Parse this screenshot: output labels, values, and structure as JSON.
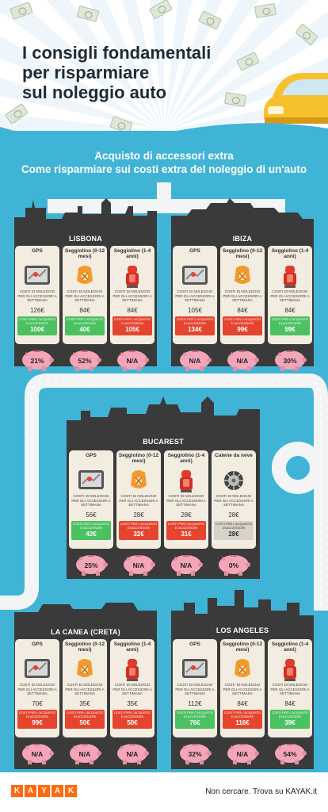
{
  "header": {
    "title_line1": "I consigli fondamentali",
    "title_line2": "per risparmiare",
    "title_line3": "sul noleggio auto"
  },
  "subtitle": {
    "line1": "Acquisto di accessori extra",
    "line2": "Come risparmiare sui costi extra del noleggio di un'auto"
  },
  "labels": {
    "rent_desc": "COSTI DI NOLEGGIO PER GLI ACCESSORI A SETTIMANA",
    "buy_desc": "COSTI PER L'ACQUISTO DI ACCESSORI"
  },
  "cities": [
    {
      "name": "LISBONA",
      "items": [
        {
          "label": "GPS",
          "icon": "gps-icon",
          "rent": "126€",
          "buy": "100€",
          "buy_color": "green",
          "saving": "21%"
        },
        {
          "label": "Seggiolino (0-12 mesi)",
          "icon": "baby-seat-icon",
          "rent": "84€",
          "buy": "40€",
          "buy_color": "green",
          "saving": "52%"
        },
        {
          "label": "Seggiolino (1-4 anni)",
          "icon": "child-seat-icon",
          "rent": "84€",
          "buy": "105€",
          "buy_color": "red",
          "saving": "N/A"
        }
      ]
    },
    {
      "name": "IBIZA",
      "items": [
        {
          "label": "GPS",
          "icon": "gps-icon",
          "rent": "105€",
          "buy": "134€",
          "buy_color": "red",
          "saving": "N/A"
        },
        {
          "label": "Seggiolino (0-12 mesi)",
          "icon": "baby-seat-icon",
          "rent": "84€",
          "buy": "99€",
          "buy_color": "red",
          "saving": "N/A"
        },
        {
          "label": "Seggiolino (1-4 anni)",
          "icon": "child-seat-icon",
          "rent": "84€",
          "buy": "59€",
          "buy_color": "green",
          "saving": "30%"
        }
      ]
    },
    {
      "name": "BUCAREST",
      "items": [
        {
          "label": "GPS",
          "icon": "gps-icon",
          "rent": "56€",
          "buy": "42€",
          "buy_color": "green",
          "saving": "25%"
        },
        {
          "label": "Seggiolino (0-12 mesi)",
          "icon": "baby-seat-icon",
          "rent": "28€",
          "buy": "32€",
          "buy_color": "red",
          "saving": "N/A"
        },
        {
          "label": "Seggiolino (1-4 anni)",
          "icon": "child-seat-icon",
          "rent": "28€",
          "buy": "31€",
          "buy_color": "red",
          "saving": "N/A"
        },
        {
          "label": "Catene da neve",
          "icon": "snow-chain-icon",
          "rent": "28€",
          "buy": "28€",
          "buy_color": "gray",
          "saving": "0%"
        }
      ]
    },
    {
      "name": "LA CANEA (CRETA)",
      "items": [
        {
          "label": "GPS",
          "icon": "gps-icon",
          "rent": "70€",
          "buy": "99€",
          "buy_color": "red",
          "saving": "N/A"
        },
        {
          "label": "Seggiolino (0-12 mesi)",
          "icon": "baby-seat-icon",
          "rent": "35€",
          "buy": "50€",
          "buy_color": "red",
          "saving": "N/A"
        },
        {
          "label": "Seggiolino (1-4 anni)",
          "icon": "child-seat-icon",
          "rent": "35€",
          "buy": "50€",
          "buy_color": "red",
          "saving": "N/A"
        }
      ]
    },
    {
      "name": "LOS ANGELES",
      "items": [
        {
          "label": "GPS",
          "icon": "gps-icon",
          "rent": "112€",
          "buy": "76€",
          "buy_color": "green",
          "saving": "32%"
        },
        {
          "label": "Seggiolino (0-12 mesi)",
          "icon": "baby-seat-icon",
          "rent": "84€",
          "buy": "116€",
          "buy_color": "red",
          "saving": "N/A"
        },
        {
          "label": "Seggiolino (1-4 anni)",
          "icon": "child-seat-icon",
          "rent": "84€",
          "buy": "39€",
          "buy_color": "green",
          "saving": "54%"
        }
      ]
    }
  ],
  "footer": {
    "logo_letters": [
      "K",
      "A",
      "Y",
      "A",
      "K"
    ],
    "tagline": "Non cercare. Trova su KAYAK.it"
  },
  "colors": {
    "background": "#3fb4d6",
    "skyline": "#3a3a3a",
    "card": "#f3ece0",
    "green": "#4cc162",
    "red": "#e5452f",
    "pig": "#f4a6b8",
    "kayak": "#ff690f"
  }
}
